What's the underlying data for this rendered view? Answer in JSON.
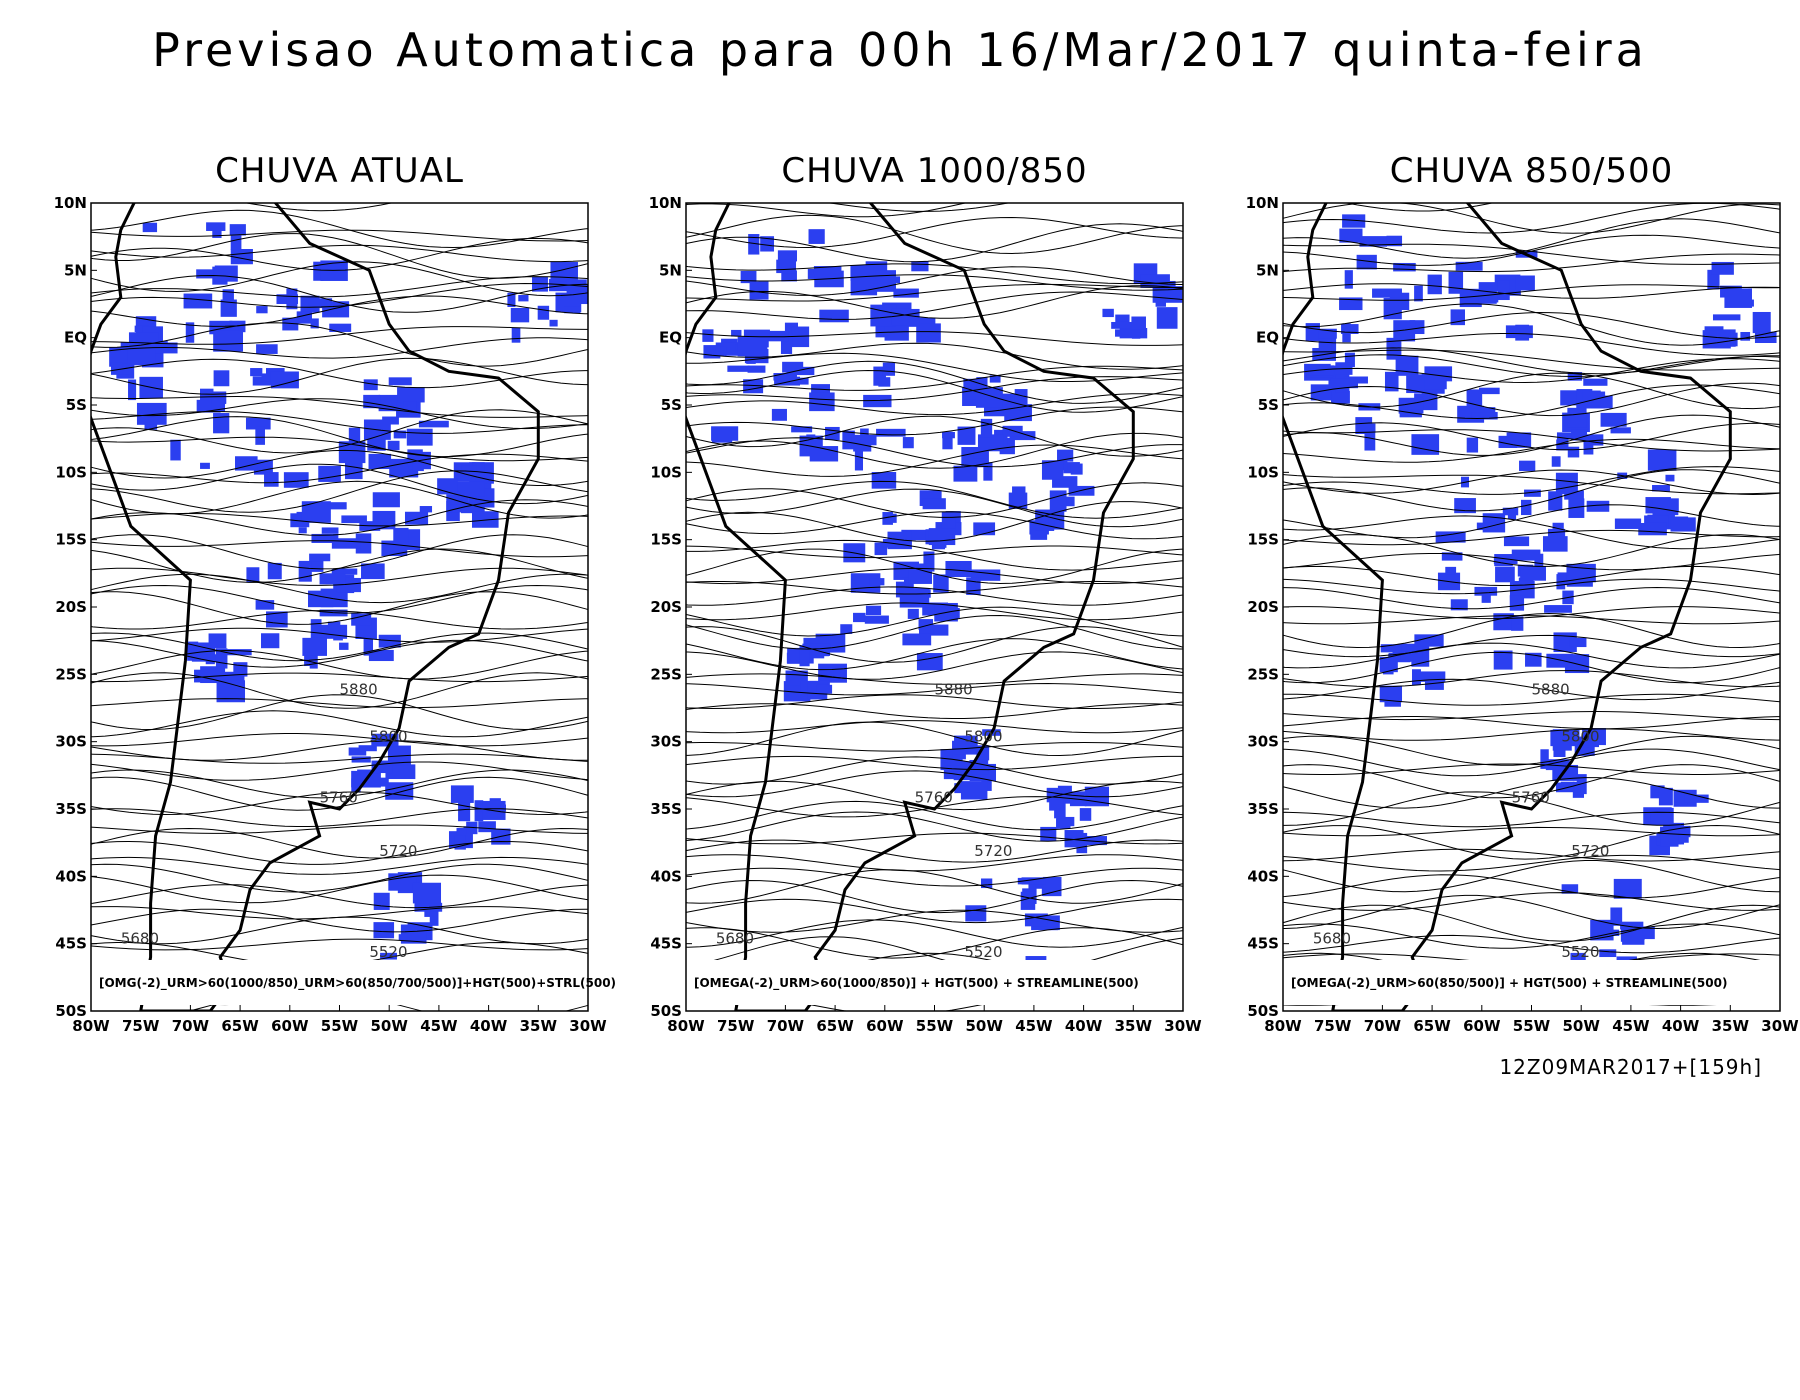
{
  "title": "Previsao Automatica para 00h 16/Mar/2017 quinta-feira",
  "lat_labels": [
    "10N",
    "5N",
    "EQ",
    "5S",
    "10S",
    "15S",
    "20S",
    "25S",
    "30S",
    "35S",
    "40S",
    "45S",
    "50S"
  ],
  "lon_labels": [
    "80W",
    "75W",
    "70W",
    "65W",
    "60W",
    "55W",
    "50W",
    "45W",
    "40W",
    "35W",
    "30W"
  ],
  "panels": [
    {
      "title": "CHUVA ATUAL",
      "note": "[OMG(-2)_URM>60(1000/850)_URM>60(850/700/500)]+HGT(500)+STRL(500)",
      "contour_labels": [
        "5880",
        "5800",
        "5760",
        "5720",
        "5680",
        "5520"
      ]
    },
    {
      "title": "CHUVA 1000/850",
      "note": "[OMEGA(-2)_URM>60(1000/850)] + HGT(500) + STREAMLINE(500)",
      "contour_labels": [
        "5880",
        "5800",
        "5760",
        "5720",
        "5680",
        "5520"
      ]
    },
    {
      "title": "CHUVA 850/500",
      "note": "[OMEGA(-2)_URM>60(850/500)] + HGT(500) + STREAMLINE(500)",
      "contour_labels": [
        "5880",
        "5800",
        "5760",
        "5720",
        "5680",
        "5520"
      ]
    }
  ],
  "footer": "12Z09MAR2017+[159h]"
}
